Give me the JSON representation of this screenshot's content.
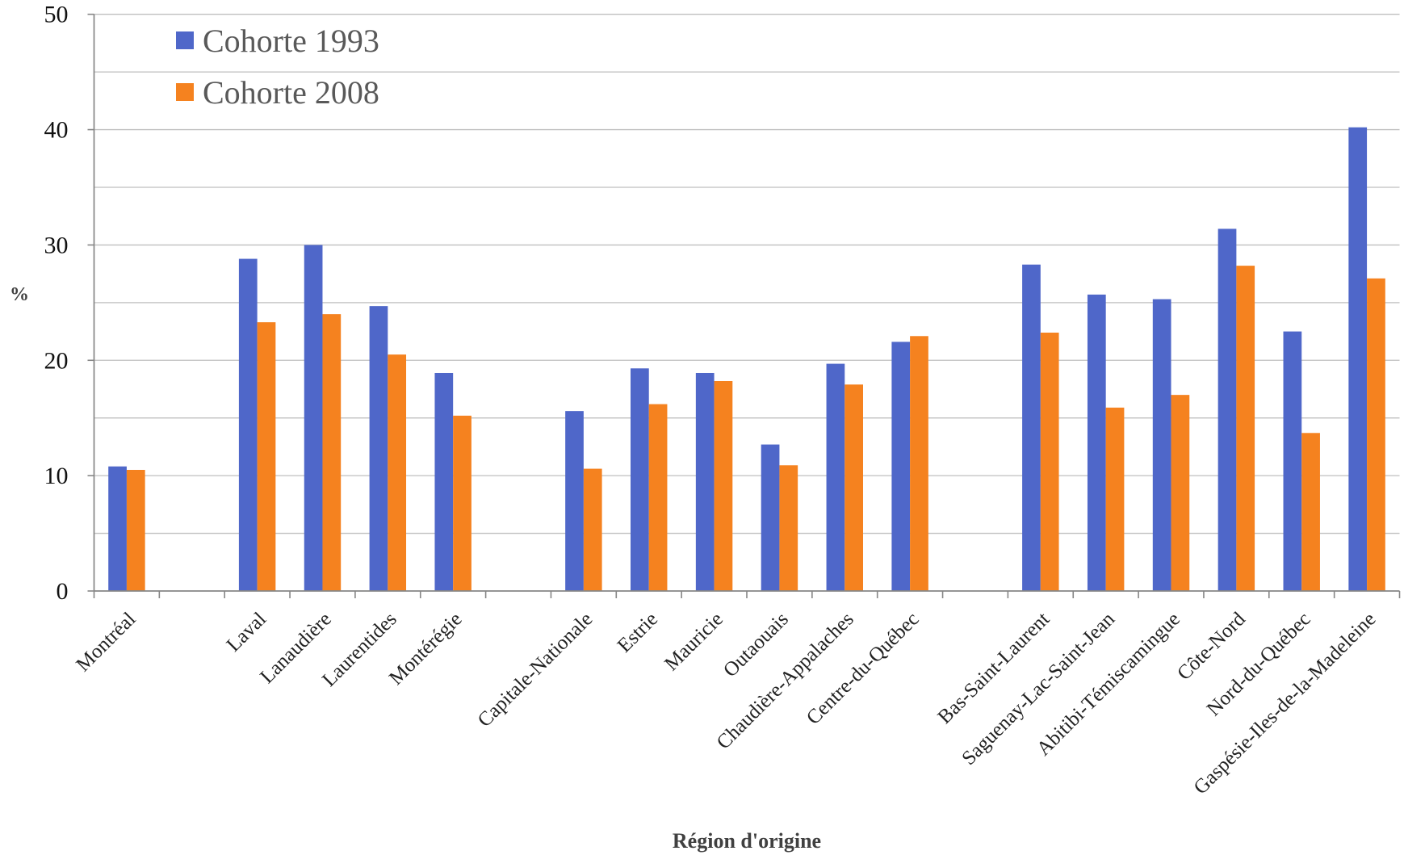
{
  "chart_data": {
    "type": "bar",
    "title": "",
    "xlabel": "Région d'origine",
    "ylabel": "%",
    "ylim": [
      0,
      50
    ],
    "yticks": [
      0,
      10,
      20,
      30,
      40,
      50
    ],
    "grid": true,
    "legend": "top-left",
    "categories": [
      "Montréal",
      "",
      "Laval",
      "Lanaudière",
      "Laurentides",
      "Montérégie",
      "",
      "Capitale-Nationale",
      "Estrie",
      "Mauricie",
      "Outaouais",
      "Chaudière-Appalaches",
      "Centre-du-Québec",
      "",
      "Bas-Saint-Laurent",
      "Saguenay-Lac-Saint-Jean",
      "Abitibi-Témiscamingue",
      "Côte-Nord",
      "Nord-du-Québec",
      "Gaspésie-Iles-de-la-Madeleine"
    ],
    "series": [
      {
        "name": "Cohorte 1993",
        "color": "#4F67C9",
        "values": [
          10.8,
          null,
          28.8,
          30.0,
          24.7,
          18.9,
          null,
          15.6,
          19.3,
          18.9,
          12.7,
          19.7,
          21.6,
          null,
          28.3,
          25.7,
          25.3,
          31.4,
          22.5,
          40.2
        ]
      },
      {
        "name": "Cohorte 2008",
        "color": "#F5821F",
        "values": [
          10.5,
          null,
          23.3,
          24.0,
          20.5,
          15.2,
          null,
          10.6,
          16.2,
          18.2,
          10.9,
          17.9,
          22.1,
          null,
          22.4,
          15.9,
          17.0,
          28.2,
          13.7,
          27.1
        ]
      }
    ]
  }
}
